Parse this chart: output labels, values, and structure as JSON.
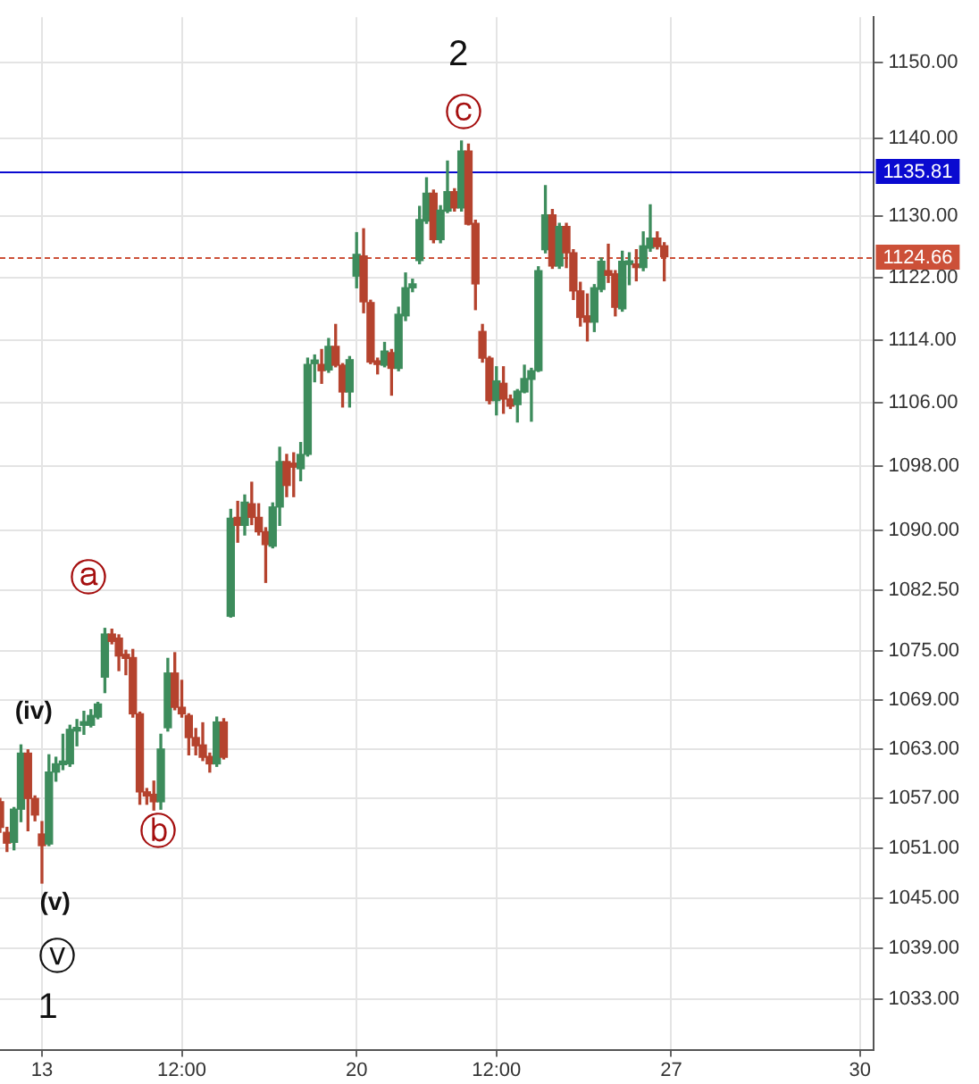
{
  "chart_data": {
    "type": "candlestick",
    "log": true,
    "grid": true,
    "categories": [
      null,
      null,
      null,
      null,
      null,
      null,
      "13",
      null,
      null,
      null,
      null,
      null,
      null,
      null,
      null,
      null,
      null,
      null,
      null,
      null,
      null,
      null,
      null,
      null,
      null,
      null,
      "12:00",
      null,
      null,
      null,
      null,
      null,
      null,
      null,
      null,
      null,
      null,
      null,
      null,
      null,
      null,
      null,
      null,
      null,
      null,
      null,
      null,
      null,
      null,
      null,
      null,
      "20",
      null,
      null,
      null,
      null,
      null,
      null,
      null,
      null,
      null,
      null,
      null,
      null,
      null,
      null,
      null,
      null,
      null,
      null,
      null,
      "12:00",
      null,
      null,
      null,
      null,
      null,
      null,
      null,
      null,
      null,
      null,
      null,
      null,
      null,
      null,
      null,
      null,
      null,
      null,
      null,
      null,
      null,
      null,
      null,
      null,
      "27",
      null,
      null,
      null,
      null,
      null,
      null,
      null,
      null,
      null,
      null,
      null,
      null,
      null,
      null,
      null,
      null,
      null,
      null,
      null,
      null,
      null,
      null,
      null,
      null,
      null,
      null,
      "30",
      null,
      null
    ],
    "ohlc": [
      [
        1056.6,
        1057.0,
        1052.9,
        1053.5
      ],
      [
        1052.9,
        1053.5,
        1050.6,
        1051.6
      ],
      [
        1051.7,
        1055.9,
        1050.8,
        1055.7
      ],
      [
        1055.7,
        1063.5,
        1054.2,
        1062.5
      ],
      [
        1062.5,
        1062.9,
        1053.1,
        1057.0
      ],
      [
        1057.0,
        1057.3,
        1054.3,
        1055.0
      ],
      [
        1052.7,
        1054.2,
        1046.8,
        1051.3
      ],
      [
        1051.5,
        1062.3,
        1051.3,
        1060.2
      ],
      [
        1060.2,
        1062.0,
        1059.1,
        1061.2
      ],
      [
        1061.1,
        1064.8,
        1060.5,
        1061.4
      ],
      [
        1061.2,
        1065.9,
        1060.9,
        1065.4
      ],
      [
        1065.2,
        1066.6,
        1063.4,
        1065.4
      ],
      [
        1065.9,
        1067.6,
        1064.8,
        1066.1
      ],
      [
        1065.9,
        1067.8,
        1065.7,
        1067.1
      ],
      [
        1066.9,
        1068.7,
        1066.7,
        1068.5
      ],
      [
        1071.8,
        1077.8,
        1069.9,
        1077.1
      ],
      [
        1077.1,
        1077.7,
        1075.9,
        1076.2
      ],
      [
        1076.6,
        1077.0,
        1072.6,
        1074.4
      ],
      [
        1074.6,
        1075.1,
        1072.1,
        1074.1
      ],
      [
        1074.2,
        1075.2,
        1066.9,
        1067.3
      ],
      [
        1067.3,
        1067.5,
        1056.3,
        1057.8
      ],
      [
        1057.8,
        1058.2,
        1056.3,
        1057.3
      ],
      [
        1057.5,
        1059.1,
        1055.6,
        1056.6
      ],
      [
        1056.6,
        1064.8,
        1055.7,
        1063.0
      ],
      [
        1065.6,
        1074.1,
        1065.2,
        1072.3
      ],
      [
        1072.3,
        1074.8,
        1067.8,
        1068.1
      ],
      [
        1068.1,
        1071.4,
        1066.9,
        1067.3
      ],
      [
        1067.1,
        1067.3,
        1062.3,
        1064.4
      ],
      [
        1064.4,
        1065.5,
        1062.3,
        1063.4
      ],
      [
        1063.5,
        1066.2,
        1061.6,
        1062.0
      ],
      [
        1062.1,
        1062.5,
        1060.2,
        1061.2
      ],
      [
        1061.2,
        1066.9,
        1060.9,
        1066.3
      ],
      [
        1066.3,
        1066.7,
        1061.8,
        1062.0
      ],
      [
        1079.3,
        1092.6,
        1079.2,
        1091.5
      ],
      [
        1091.6,
        1093.6,
        1088.5,
        1090.6
      ],
      [
        1090.6,
        1094.4,
        1089.4,
        1093.5
      ],
      [
        1093.3,
        1096.0,
        1090.7,
        1091.6
      ],
      [
        1091.6,
        1093.3,
        1089.4,
        1089.8
      ],
      [
        1089.8,
        1090.3,
        1083.5,
        1088.2
      ],
      [
        1088.0,
        1093.4,
        1087.8,
        1092.9
      ],
      [
        1092.9,
        1100.4,
        1090.6,
        1098.6
      ],
      [
        1098.6,
        1099.5,
        1094.2,
        1095.6
      ],
      [
        1098.4,
        1099.7,
        1094.2,
        1097.9
      ],
      [
        1097.7,
        1101.0,
        1096.2,
        1099.5
      ],
      [
        1099.5,
        1111.7,
        1099.3,
        1110.9
      ],
      [
        1111.0,
        1112.1,
        1108.7,
        1111.2
      ],
      [
        1110.9,
        1112.8,
        1108.5,
        1110.1
      ],
      [
        1110.2,
        1114.2,
        1109.9,
        1113.2
      ],
      [
        1113.2,
        1116.0,
        1110.6,
        1110.8
      ],
      [
        1110.8,
        1111.0,
        1105.5,
        1107.4
      ],
      [
        1107.4,
        1111.9,
        1105.5,
        1111.5
      ],
      [
        1122.2,
        1127.8,
        1120.7,
        1125.0
      ],
      [
        1124.8,
        1128.3,
        1117.5,
        1118.9
      ],
      [
        1118.8,
        1119.1,
        1111.0,
        1111.2
      ],
      [
        1111.3,
        1111.7,
        1109.7,
        1110.9
      ],
      [
        1110.8,
        1113.7,
        1110.6,
        1112.6
      ],
      [
        1112.4,
        1112.8,
        1107.0,
        1110.4
      ],
      [
        1110.4,
        1118.2,
        1110.1,
        1117.3
      ],
      [
        1117.1,
        1122.6,
        1116.5,
        1120.7
      ],
      [
        1120.7,
        1121.8,
        1120.2,
        1121.2
      ],
      [
        1124.2,
        1131.2,
        1123.8,
        1129.5
      ],
      [
        1129.3,
        1134.9,
        1129.0,
        1132.9
      ],
      [
        1132.9,
        1133.3,
        1126.5,
        1126.9
      ],
      [
        1126.9,
        1131.3,
        1126.5,
        1130.7
      ],
      [
        1130.6,
        1137.1,
        1130.4,
        1133.1
      ],
      [
        1133.1,
        1133.5,
        1130.6,
        1131.0
      ],
      [
        1131.0,
        1139.7,
        1130.6,
        1138.4
      ],
      [
        1138.4,
        1139.3,
        1128.8,
        1128.9
      ],
      [
        1129.0,
        1129.4,
        1117.9,
        1121.2
      ],
      [
        1115.1,
        1116.0,
        1111.2,
        1111.7
      ],
      [
        1111.7,
        1111.9,
        1105.9,
        1106.3
      ],
      [
        1106.3,
        1110.6,
        1104.5,
        1108.8
      ],
      [
        1108.5,
        1110.6,
        1104.7,
        1106.5
      ],
      [
        1106.5,
        1107.0,
        1105.3,
        1105.6
      ],
      [
        1105.8,
        1107.7,
        1103.6,
        1107.5
      ],
      [
        1107.4,
        1110.8,
        1107.3,
        1109.1
      ],
      [
        1109.0,
        1110.4,
        1103.7,
        1110.1
      ],
      [
        1110.1,
        1123.4,
        1110.0,
        1122.9
      ],
      [
        1125.6,
        1133.9,
        1125.2,
        1130.1
      ],
      [
        1130.1,
        1130.8,
        1123.2,
        1123.5
      ],
      [
        1123.5,
        1129.0,
        1123.2,
        1128.6
      ],
      [
        1128.6,
        1129.0,
        1123.3,
        1125.2
      ],
      [
        1125.2,
        1125.6,
        1119.2,
        1120.3
      ],
      [
        1120.3,
        1121.4,
        1115.8,
        1116.9
      ],
      [
        1117.1,
        1119.9,
        1113.9,
        1116.3
      ],
      [
        1116.3,
        1121.1,
        1115.1,
        1120.7
      ],
      [
        1120.5,
        1124.5,
        1120.2,
        1124.1
      ],
      [
        1122.9,
        1126.3,
        1121.4,
        1122.3
      ],
      [
        1122.5,
        1122.9,
        1117.1,
        1118.2
      ],
      [
        1118.0,
        1125.4,
        1117.7,
        1124.1
      ],
      [
        1123.7,
        1125.2,
        1121.1,
        1123.9
      ],
      [
        1123.7,
        1125.6,
        1121.6,
        1123.3
      ],
      [
        1123.3,
        1127.9,
        1122.9,
        1126.1
      ],
      [
        1125.8,
        1131.4,
        1125.4,
        1127.1
      ],
      [
        1127.1,
        1127.9,
        1125.7,
        1126.0
      ],
      [
        1126.1,
        1126.5,
        1121.6,
        1124.7
      ],
      null,
      null,
      null,
      null,
      null,
      null,
      null,
      null,
      null,
      null,
      null,
      null,
      null,
      null,
      null,
      null,
      null,
      null,
      null,
      null,
      null,
      null,
      null,
      null,
      null,
      null,
      null,
      null,
      null,
      null
    ],
    "colors": [
      "#b5432e",
      "#b5432e",
      "#3d8c5c",
      "#3d8c5c",
      "#b5432e",
      "#b5432e",
      "#b5432e",
      "#3d8c5c",
      "#3d8c5c",
      "#3d8c5c",
      "#3d8c5c",
      "#3d8c5c",
      "#3d8c5c",
      "#3d8c5c",
      "#3d8c5c",
      "#3d8c5c",
      "#b5432e",
      "#b5432e",
      "#b5432e",
      "#b5432e",
      "#b5432e",
      "#b5432e",
      "#b5432e",
      "#3d8c5c",
      "#3d8c5c",
      "#b5432e",
      "#b5432e",
      "#b5432e",
      "#b5432e",
      "#b5432e",
      "#b5432e",
      "#3d8c5c",
      "#b5432e",
      "#3d8c5c",
      "#b5432e",
      "#3d8c5c",
      "#b5432e",
      "#b5432e",
      "#b5432e",
      "#3d8c5c",
      "#3d8c5c",
      "#b5432e",
      "#b5432e",
      "#3d8c5c",
      "#3d8c5c",
      "#3d8c5c",
      "#b5432e",
      "#3d8c5c",
      "#b5432e",
      "#b5432e",
      "#3d8c5c",
      "#3d8c5c",
      "#b5432e",
      "#b5432e",
      "#b5432e",
      "#3d8c5c",
      "#b5432e",
      "#3d8c5c",
      "#3d8c5c",
      "#3d8c5c",
      "#3d8c5c",
      "#3d8c5c",
      "#b5432e",
      "#3d8c5c",
      "#3d8c5c",
      "#b5432e",
      "#3d8c5c",
      "#b5432e",
      "#b5432e",
      "#b5432e",
      "#b5432e",
      "#3d8c5c",
      "#b5432e",
      "#b5432e",
      "#3d8c5c",
      "#3d8c5c",
      "#3d8c5c",
      "#3d8c5c",
      "#3d8c5c",
      "#b5432e",
      "#3d8c5c",
      "#b5432e",
      "#b5432e",
      "#b5432e",
      "#b5432e",
      "#3d8c5c",
      "#3d8c5c",
      "#b5432e",
      "#b5432e",
      "#3d8c5c",
      "#3d8c5c",
      "#b5432e",
      "#3d8c5c",
      "#3d8c5c",
      "#b5432e",
      "#b5432e",
      null,
      null,
      null,
      null,
      null,
      null,
      null,
      null,
      null,
      null,
      null,
      null,
      null,
      null,
      null,
      null,
      null,
      null,
      null,
      null,
      null,
      null,
      null,
      null,
      null,
      null,
      null,
      null,
      null,
      null
    ],
    "ylim": [
      1027,
      1156
    ],
    "yticks": [
      {
        "value": 1033,
        "label": "1033.00"
      },
      {
        "value": 1039,
        "label": "1039.00"
      },
      {
        "value": 1045,
        "label": "1045.00"
      },
      {
        "value": 1051,
        "label": "1051.00"
      },
      {
        "value": 1057,
        "label": "1057.00"
      },
      {
        "value": 1063,
        "label": "1063.00"
      },
      {
        "value": 1069,
        "label": "1069.00"
      },
      {
        "value": 1075,
        "label": "1075.00"
      },
      {
        "value": 1082.5,
        "label": "1082.50"
      },
      {
        "value": 1090,
        "label": "1090.00"
      },
      {
        "value": 1098,
        "label": "1098.00"
      },
      {
        "value": 1106,
        "label": "1106.00"
      },
      {
        "value": 1114,
        "label": "1114.00"
      },
      {
        "value": 1122,
        "label": "1122.00"
      },
      {
        "value": 1130,
        "label": "1130.00"
      },
      {
        "value": 1140,
        "label": "1140.00"
      },
      {
        "value": 1150,
        "label": "1150.00"
      }
    ],
    "ref_lines": [
      {
        "axis": "y",
        "value": 1135.81,
        "label": "1135.81",
        "color": "#0a0ad0",
        "line_style": "solid"
      },
      {
        "axis": "y",
        "value": 1124.66,
        "label": "1124.66",
        "color": "#cc5038",
        "line_style": "dotted"
      }
    ],
    "annotations": [
      "2",
      "ⓒ",
      "ⓐ",
      "(iv)",
      "ⓑ",
      "(v)",
      "ⓥ",
      "1"
    ]
  }
}
